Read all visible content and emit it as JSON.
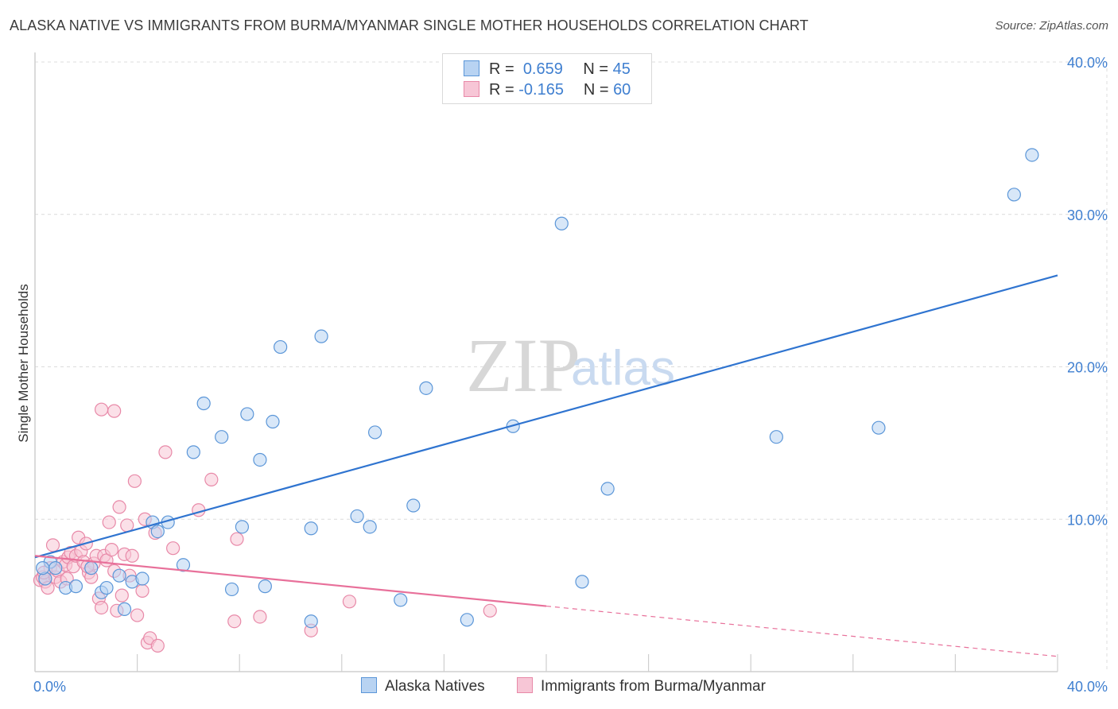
{
  "title": "ALASKA NATIVE VS IMMIGRANTS FROM BURMA/MYANMAR SINGLE MOTHER HOUSEHOLDS CORRELATION CHART",
  "source": "Source: ZipAtlas.com",
  "watermark": {
    "zip": "ZIP",
    "atlas": "atlas"
  },
  "legend": {
    "row1": {
      "r_label": "R =",
      "r_value": "0.659",
      "n_label": "N =",
      "n_value": "45"
    },
    "row2": {
      "r_label": "R =",
      "r_value": "-0.165",
      "n_label": "N =",
      "n_value": "60"
    }
  },
  "colors": {
    "blue_fill": "#b8d3f2",
    "blue_stroke": "#5b96d8",
    "blue_line": "#2f74d0",
    "pink_fill": "#f7c6d6",
    "pink_stroke": "#e889a8",
    "pink_line": "#e8709a",
    "axis_text": "#3f7fd0",
    "grid": "#dcdcdc"
  },
  "chart_data": {
    "type": "scatter",
    "title": "ALASKA NATIVE VS IMMIGRANTS FROM BURMA/MYANMAR SINGLE MOTHER HOUSEHOLDS CORRELATION CHART",
    "xlabel": "",
    "ylabel": "Single Mother Households",
    "xlim": [
      0,
      40
    ],
    "ylim": [
      0,
      40
    ],
    "x_tick_labels": [
      "0.0%",
      "40.0%"
    ],
    "y_ticks": [
      10,
      20,
      30,
      40
    ],
    "y_tick_labels": [
      "10.0%",
      "20.0%",
      "30.0%",
      "40.0%"
    ],
    "legend_labels": [
      "Alaska Natives",
      "Immigrants from Burma/Myanmar"
    ],
    "series": [
      {
        "name": "Alaska Natives",
        "r": 0.659,
        "n": 45,
        "trend": {
          "x": [
            0,
            40
          ],
          "y": [
            7.5,
            26.0
          ],
          "dashed_from": null
        },
        "points": [
          [
            0.4,
            6.1
          ],
          [
            0.6,
            7.2
          ],
          [
            0.8,
            6.8
          ],
          [
            1.2,
            5.5
          ],
          [
            1.6,
            5.6
          ],
          [
            2.2,
            6.8
          ],
          [
            2.6,
            5.2
          ],
          [
            2.8,
            5.5
          ],
          [
            3.3,
            6.3
          ],
          [
            3.5,
            4.1
          ],
          [
            3.8,
            5.9
          ],
          [
            4.2,
            6.1
          ],
          [
            4.6,
            9.8
          ],
          [
            4.8,
            9.2
          ],
          [
            5.2,
            9.8
          ],
          [
            5.8,
            7.0
          ],
          [
            6.2,
            14.4
          ],
          [
            6.6,
            17.6
          ],
          [
            7.3,
            15.4
          ],
          [
            7.7,
            5.4
          ],
          [
            8.1,
            9.5
          ],
          [
            8.3,
            16.9
          ],
          [
            8.8,
            13.9
          ],
          [
            9.0,
            5.6
          ],
          [
            9.3,
            16.4
          ],
          [
            9.6,
            21.3
          ],
          [
            10.8,
            9.4
          ],
          [
            10.8,
            3.3
          ],
          [
            11.2,
            22.0
          ],
          [
            12.6,
            10.2
          ],
          [
            13.1,
            9.5
          ],
          [
            13.3,
            15.7
          ],
          [
            14.3,
            4.7
          ],
          [
            14.8,
            10.9
          ],
          [
            15.3,
            18.6
          ],
          [
            16.9,
            3.4
          ],
          [
            18.7,
            16.1
          ],
          [
            20.6,
            29.4
          ],
          [
            21.4,
            5.9
          ],
          [
            22.4,
            12.0
          ],
          [
            29.0,
            15.4
          ],
          [
            33.0,
            16.0
          ],
          [
            38.3,
            31.3
          ],
          [
            39.0,
            33.9
          ],
          [
            0.3,
            6.8
          ]
        ]
      },
      {
        "name": "Immigrants from Burma/Myanmar",
        "r": -0.165,
        "n": 60,
        "trend": {
          "x": [
            0,
            40
          ],
          "y": [
            7.6,
            1.0
          ],
          "solid_until_x": 20
        },
        "points": [
          [
            0.2,
            6.0
          ],
          [
            0.3,
            6.2
          ],
          [
            0.4,
            5.9
          ],
          [
            0.5,
            5.5
          ],
          [
            0.6,
            6.8
          ],
          [
            0.7,
            8.3
          ],
          [
            0.8,
            6.2
          ],
          [
            0.9,
            6.6
          ],
          [
            1.0,
            5.9
          ],
          [
            1.1,
            7.2
          ],
          [
            1.2,
            7.0
          ],
          [
            1.3,
            7.5
          ],
          [
            1.4,
            7.8
          ],
          [
            1.5,
            6.9
          ],
          [
            1.6,
            7.6
          ],
          [
            1.7,
            8.8
          ],
          [
            1.8,
            7.9
          ],
          [
            1.9,
            7.2
          ],
          [
            2.0,
            8.4
          ],
          [
            2.1,
            6.5
          ],
          [
            2.2,
            6.2
          ],
          [
            2.3,
            7.1
          ],
          [
            2.4,
            7.6
          ],
          [
            2.5,
            4.8
          ],
          [
            2.6,
            4.2
          ],
          [
            2.7,
            7.6
          ],
          [
            2.8,
            7.3
          ],
          [
            2.6,
            17.2
          ],
          [
            3.1,
            17.1
          ],
          [
            2.9,
            9.8
          ],
          [
            3.0,
            8.0
          ],
          [
            3.1,
            6.6
          ],
          [
            3.2,
            4.0
          ],
          [
            3.3,
            10.8
          ],
          [
            3.4,
            5.0
          ],
          [
            3.5,
            7.7
          ],
          [
            3.6,
            9.6
          ],
          [
            3.7,
            6.3
          ],
          [
            3.8,
            7.6
          ],
          [
            3.9,
            12.5
          ],
          [
            4.0,
            3.7
          ],
          [
            4.2,
            5.3
          ],
          [
            4.3,
            10.0
          ],
          [
            4.4,
            1.9
          ],
          [
            4.5,
            2.2
          ],
          [
            4.7,
            9.1
          ],
          [
            4.8,
            1.7
          ],
          [
            5.1,
            14.4
          ],
          [
            5.4,
            8.1
          ],
          [
            6.4,
            10.6
          ],
          [
            6.9,
            12.6
          ],
          [
            7.8,
            3.3
          ],
          [
            7.9,
            8.7
          ],
          [
            8.8,
            3.6
          ],
          [
            10.8,
            2.7
          ],
          [
            12.3,
            4.6
          ],
          [
            17.8,
            4.0
          ],
          [
            0.35,
            6.5
          ],
          [
            1.25,
            6.1
          ],
          [
            2.05,
            6.9
          ]
        ]
      }
    ]
  }
}
